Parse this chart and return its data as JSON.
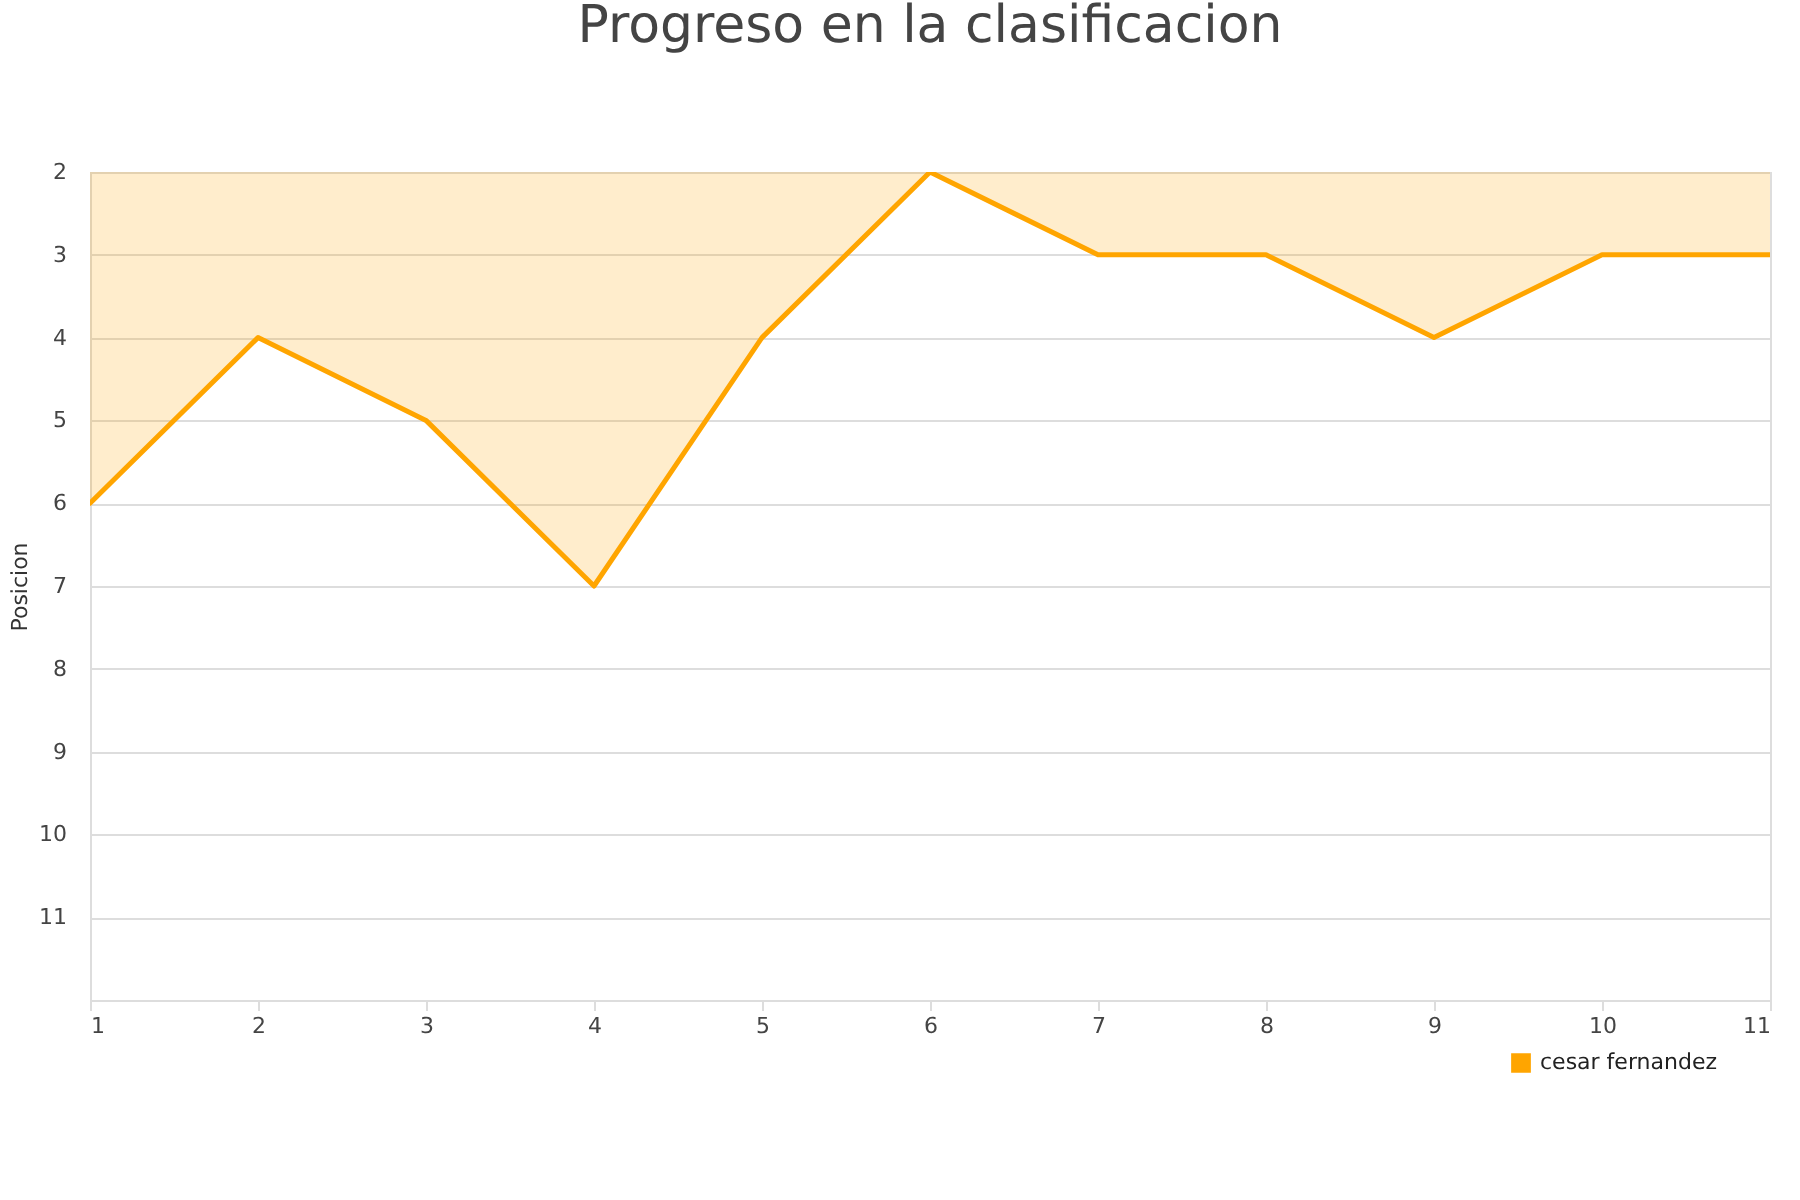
{
  "chart_data": {
    "type": "area",
    "title": "Progreso en la clasificacion",
    "ylabel": "Posicion",
    "x": [
      1,
      2,
      3,
      4,
      5,
      6,
      7,
      8,
      9,
      10,
      11
    ],
    "series": [
      {
        "name": "cesar fernandez",
        "color": "#ffa500",
        "values": [
          6,
          4,
          5,
          7,
          4,
          2,
          3,
          3,
          4,
          3,
          3
        ]
      }
    ],
    "xlim": [
      1,
      11
    ],
    "xticks": [
      1,
      2,
      3,
      4,
      5,
      6,
      7,
      8,
      9,
      10,
      11
    ],
    "ylim": [
      12,
      2
    ],
    "yticks": [
      2,
      3,
      4,
      5,
      6,
      7,
      8,
      9,
      10,
      11
    ],
    "grid": "y",
    "legend": "bottom right"
  }
}
